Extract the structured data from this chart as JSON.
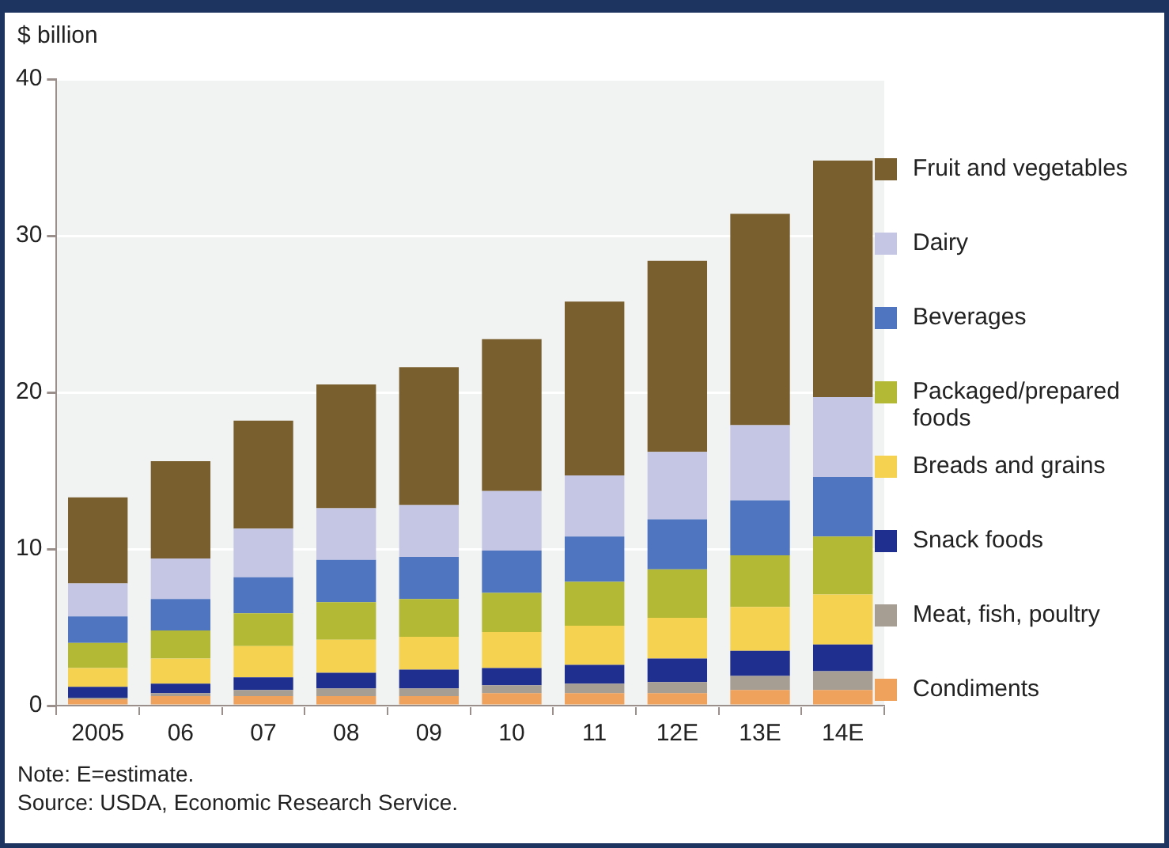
{
  "chart_data": {
    "type": "bar",
    "stacked": true,
    "ylabel": "$ billion",
    "categories": [
      "2005",
      "06",
      "07",
      "08",
      "09",
      "10",
      "11",
      "12E",
      "13E",
      "14E"
    ],
    "series": [
      {
        "name": "Condiments",
        "color": "#eea25c",
        "values": [
          0.4,
          0.6,
          0.6,
          0.6,
          0.6,
          0.8,
          0.8,
          0.8,
          1.0,
          1.0
        ]
      },
      {
        "name": "Meat, fish, poultry",
        "color": "#a69d93",
        "values": [
          0.1,
          0.2,
          0.4,
          0.5,
          0.5,
          0.5,
          0.6,
          0.7,
          0.9,
          1.2
        ]
      },
      {
        "name": "Snack foods",
        "color": "#1e2f8f",
        "values": [
          0.7,
          0.6,
          0.8,
          1.0,
          1.2,
          1.1,
          1.2,
          1.5,
          1.6,
          1.7
        ]
      },
      {
        "name": "Breads and grains",
        "color": "#f5d250",
        "values": [
          1.2,
          1.6,
          2.0,
          2.1,
          2.1,
          2.3,
          2.5,
          2.6,
          2.8,
          3.2
        ]
      },
      {
        "name": "Packaged/prepared foods",
        "color": "#b3b935",
        "values": [
          1.6,
          1.8,
          2.1,
          2.4,
          2.4,
          2.5,
          2.8,
          3.1,
          3.3,
          3.7
        ]
      },
      {
        "name": "Beverages",
        "color": "#4f74c0",
        "values": [
          1.7,
          2.0,
          2.3,
          2.7,
          2.7,
          2.7,
          2.9,
          3.2,
          3.5,
          3.8
        ]
      },
      {
        "name": "Dairy",
        "color": "#c4c6e4",
        "values": [
          2.1,
          2.6,
          3.1,
          3.3,
          3.3,
          3.8,
          3.9,
          4.3,
          4.8,
          5.1
        ]
      },
      {
        "name": "Fruit and vegetables",
        "color": "#7a5f2e",
        "values": [
          5.5,
          6.2,
          6.9,
          7.9,
          8.8,
          9.7,
          11.1,
          12.2,
          13.5,
          15.1
        ]
      }
    ],
    "ylim": [
      0,
      40
    ],
    "yticks": [
      0,
      10,
      20,
      30,
      40
    ],
    "grid": "y",
    "legend": "right",
    "annotations": [
      "Note: E=estimate.",
      "Source: USDA, Economic Research Service."
    ]
  }
}
